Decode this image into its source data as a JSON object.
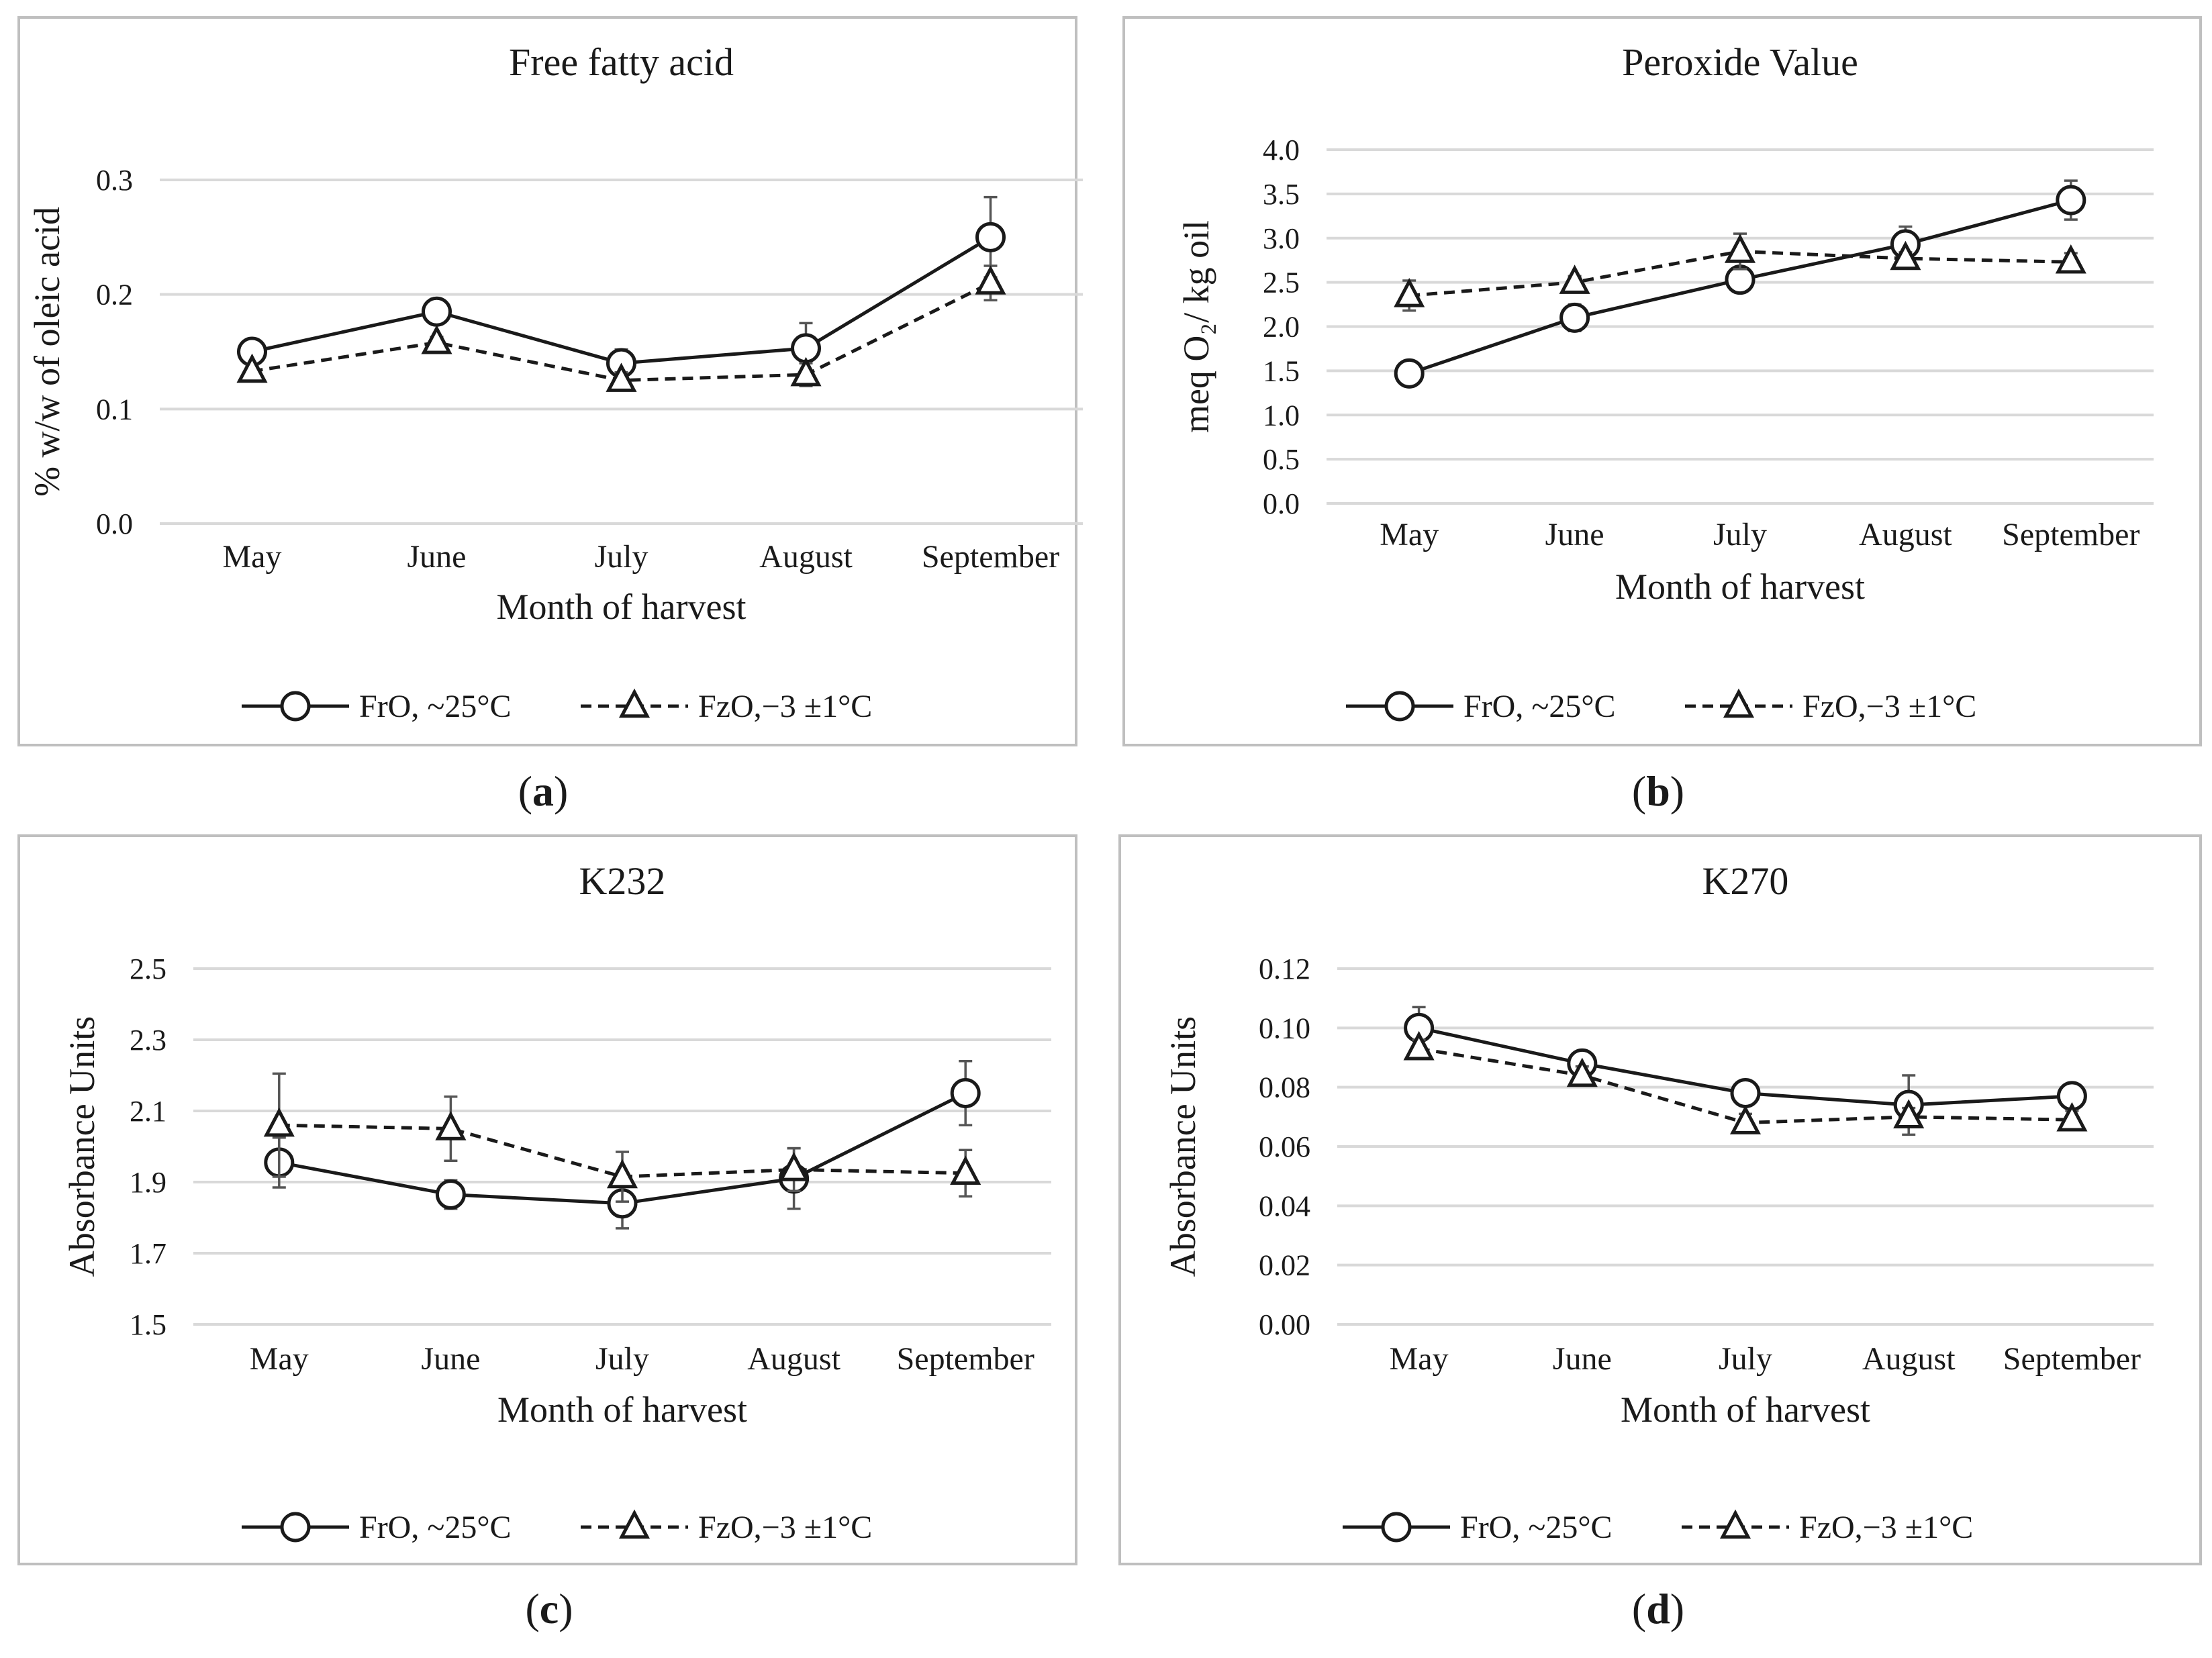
{
  "legend_series": [
    {
      "name": "FrO, ~25°C",
      "marker": "circle",
      "line": "solid"
    },
    {
      "name": "FzO,−3 ±1°C",
      "marker": "triangle",
      "line": "dashed"
    }
  ],
  "chart_data": [
    {
      "panel": "a",
      "type": "line",
      "title": "Free fatty acid",
      "xlabel": "Month of harvest",
      "ylabel": "% w/w of oleic acid",
      "categories": [
        "May",
        "June",
        "July",
        "August",
        "September"
      ],
      "ylim": [
        0.0,
        0.3
      ],
      "yticks": [
        "0.0",
        "0.1",
        "0.2",
        "0.3"
      ],
      "grid": true,
      "legend_position": "bottom",
      "series": [
        {
          "name": "FrO, ~25°C",
          "marker": "circle",
          "line": "solid",
          "values": [
            0.15,
            0.185,
            0.14,
            0.153,
            0.25
          ],
          "errors": [
            0.005,
            0.005,
            0.012,
            0.022,
            0.035
          ]
        },
        {
          "name": "FzO,−3 ±1°C",
          "marker": "triangle",
          "line": "dashed",
          "values": [
            0.133,
            0.158,
            0.125,
            0.13,
            0.21
          ],
          "errors": [
            0.005,
            0.005,
            0.007,
            0.01,
            0.015
          ]
        }
      ]
    },
    {
      "panel": "b",
      "type": "line",
      "title": "Peroxide Value",
      "xlabel": "Month of harvest",
      "ylabel": "meq O₂/ kg oil",
      "categories": [
        "May",
        "June",
        "July",
        "August",
        "September"
      ],
      "ylim": [
        0.0,
        4.0
      ],
      "yticks": [
        "0.0",
        "0.5",
        "1.0",
        "1.5",
        "2.0",
        "2.5",
        "3.0",
        "3.5",
        "4.0"
      ],
      "grid": true,
      "legend_position": "bottom",
      "series": [
        {
          "name": "FrO, ~25°C",
          "marker": "circle",
          "line": "solid",
          "values": [
            1.47,
            2.1,
            2.53,
            2.93,
            3.43
          ],
          "errors": [
            0.05,
            0.15,
            0.1,
            0.2,
            0.22
          ]
        },
        {
          "name": "FzO,−3 ±1°C",
          "marker": "triangle",
          "line": "dashed",
          "values": [
            2.35,
            2.5,
            2.85,
            2.77,
            2.73
          ],
          "errors": [
            0.17,
            0.07,
            0.2,
            0.07,
            0.1
          ]
        }
      ]
    },
    {
      "panel": "c",
      "type": "line",
      "title": "K232",
      "xlabel": "Month of harvest",
      "ylabel": "Absorbance Units",
      "categories": [
        "May",
        "June",
        "July",
        "August",
        "September"
      ],
      "ylim": [
        1.5,
        2.5
      ],
      "yticks": [
        "1.5",
        "1.7",
        "1.9",
        "2.1",
        "2.3",
        "2.5"
      ],
      "grid": true,
      "legend_position": "bottom",
      "series": [
        {
          "name": "FrO, ~25°C",
          "marker": "circle",
          "line": "solid",
          "values": [
            1.955,
            1.865,
            1.84,
            1.91,
            2.15
          ],
          "errors": [
            0.07,
            0.04,
            0.07,
            0.085,
            0.09
          ]
        },
        {
          "name": "FzO,−3 ±1°C",
          "marker": "triangle",
          "line": "dashed",
          "values": [
            2.06,
            2.05,
            1.915,
            1.935,
            1.925
          ],
          "errors": [
            0.145,
            0.09,
            0.07,
            0.06,
            0.065
          ]
        }
      ]
    },
    {
      "panel": "d",
      "type": "line",
      "title": "K270",
      "xlabel": "Month of harvest",
      "ylabel": "Absorbance Units",
      "categories": [
        "May",
        "June",
        "July",
        "August",
        "September"
      ],
      "ylim": [
        0.0,
        0.12
      ],
      "yticks": [
        "0.00",
        "0.02",
        "0.04",
        "0.06",
        "0.08",
        "0.10",
        "0.12"
      ],
      "grid": true,
      "legend_position": "bottom",
      "series": [
        {
          "name": "FrO, ~25°C",
          "marker": "circle",
          "line": "solid",
          "values": [
            0.1,
            0.088,
            0.078,
            0.074,
            0.077
          ],
          "errors": [
            0.007,
            0.003,
            0.003,
            0.01,
            0.004
          ]
        },
        {
          "name": "FzO,−3 ±1°C",
          "marker": "triangle",
          "line": "dashed",
          "values": [
            0.093,
            0.084,
            0.068,
            0.07,
            0.069
          ],
          "errors": [
            0.003,
            0.003,
            0.003,
            0.003,
            0.003
          ]
        }
      ]
    }
  ]
}
